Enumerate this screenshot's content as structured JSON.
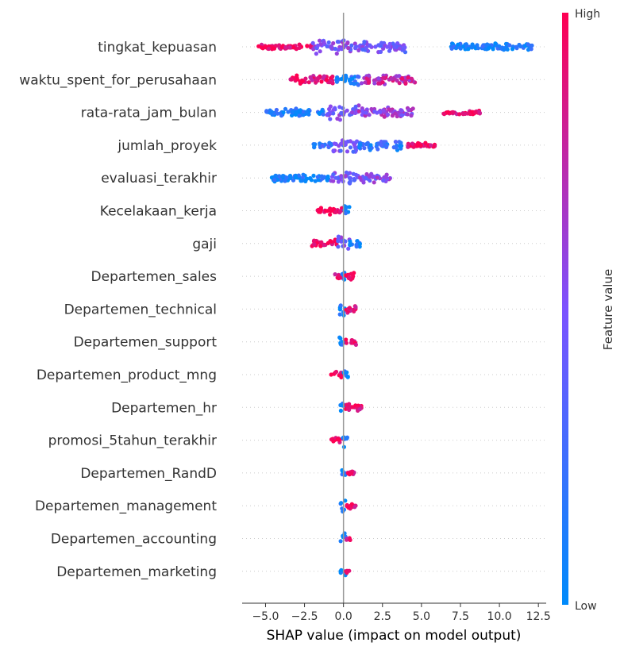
{
  "chart_data": {
    "type": "scatter",
    "subtype": "shap-beeswarm",
    "xlabel": "SHAP value (impact on model output)",
    "xlim": [
      -6.5,
      13.0
    ],
    "xticks": [
      -5.0,
      -2.5,
      0.0,
      2.5,
      5.0,
      7.5,
      10.0,
      12.5
    ],
    "xtick_labels": [
      "−5.0",
      "−2.5",
      "0.0",
      "2.5",
      "5.0",
      "7.5",
      "10.0",
      "12.5"
    ],
    "colorbar": {
      "label": "Feature value",
      "high_label": "High",
      "low_label": "Low",
      "low_color": "#008bfb",
      "mid_color": "#7c52ff",
      "high_color": "#ff0052"
    },
    "zero_line": true,
    "features": [
      {
        "name": "tingkat_kepuasan",
        "min": -5.6,
        "max": 12.2,
        "segments": [
          [
            -5.6,
            -2.0,
            0.95,
            0.15
          ],
          [
            -2.0,
            0.5,
            0.5,
            0.9
          ],
          [
            0.5,
            4.0,
            0.45,
            0.55
          ],
          [
            6.9,
            12.2,
            0.1,
            0.3
          ]
        ]
      },
      {
        "name": "waktu_spent_for_perusahaan",
        "min": -3.5,
        "max": 4.6,
        "segments": [
          [
            -3.5,
            -0.6,
            0.92,
            0.35
          ],
          [
            -0.6,
            1.0,
            0.15,
            0.75
          ],
          [
            1.0,
            4.6,
            0.75,
            0.5
          ]
        ]
      },
      {
        "name": "rata-rata_jam_bulan",
        "min": -5.0,
        "max": 8.8,
        "segments": [
          [
            -5.0,
            -1.2,
            0.1,
            0.3
          ],
          [
            -1.2,
            1.0,
            0.5,
            0.85
          ],
          [
            1.0,
            4.5,
            0.6,
            0.45
          ],
          [
            6.4,
            8.8,
            0.95,
            0.08
          ]
        ]
      },
      {
        "name": "jumlah_proyek",
        "min": -2.0,
        "max": 5.9,
        "segments": [
          [
            -2.0,
            -0.7,
            0.2,
            0.25
          ],
          [
            -0.7,
            1.0,
            0.45,
            0.85
          ],
          [
            1.0,
            3.8,
            0.2,
            0.5
          ],
          [
            3.8,
            5.9,
            0.95,
            0.12
          ]
        ]
      },
      {
        "name": "evaluasi_terakhir",
        "min": -4.7,
        "max": 3.0,
        "segments": [
          [
            -4.7,
            -0.8,
            0.08,
            0.3
          ],
          [
            -0.8,
            0.8,
            0.45,
            0.85
          ],
          [
            0.8,
            3.0,
            0.5,
            0.45
          ]
        ]
      },
      {
        "name": "Kecelakaan_kerja",
        "min": -1.7,
        "max": 0.4,
        "segments": [
          [
            -1.7,
            -0.1,
            0.95,
            0.4
          ],
          [
            0.0,
            0.4,
            0.05,
            0.9
          ]
        ]
      },
      {
        "name": "gaji",
        "min": -2.1,
        "max": 1.1,
        "segments": [
          [
            -2.1,
            -0.4,
            0.95,
            0.35
          ],
          [
            -0.4,
            0.4,
            0.45,
            0.85
          ],
          [
            0.4,
            1.1,
            0.1,
            0.3
          ]
        ]
      },
      {
        "name": "Departemen_sales",
        "min": -0.6,
        "max": 0.7,
        "segments": [
          [
            -0.6,
            -0.1,
            0.9,
            0.15
          ],
          [
            -0.1,
            0.15,
            0.05,
            0.8
          ],
          [
            0.15,
            0.7,
            0.95,
            0.25
          ]
        ]
      },
      {
        "name": "Departemen_technical",
        "min": -0.3,
        "max": 0.9,
        "segments": [
          [
            -0.3,
            0.15,
            0.05,
            0.8
          ],
          [
            0.15,
            0.9,
            0.95,
            0.35
          ]
        ]
      },
      {
        "name": "Departemen_support",
        "min": -0.3,
        "max": 0.8,
        "segments": [
          [
            -0.3,
            0.15,
            0.05,
            0.8
          ],
          [
            0.15,
            0.8,
            0.95,
            0.3
          ]
        ]
      },
      {
        "name": "Departemen_product_mng",
        "min": -0.8,
        "max": 0.3,
        "segments": [
          [
            -0.8,
            -0.05,
            0.95,
            0.3
          ],
          [
            -0.05,
            0.3,
            0.05,
            0.8
          ]
        ]
      },
      {
        "name": "Departemen_hr",
        "min": -0.2,
        "max": 1.2,
        "segments": [
          [
            -0.2,
            0.15,
            0.05,
            0.8
          ],
          [
            0.15,
            1.2,
            0.95,
            0.4
          ]
        ]
      },
      {
        "name": "promosi_5tahun_terakhir",
        "min": -0.8,
        "max": 0.3,
        "segments": [
          [
            -0.8,
            -0.05,
            0.95,
            0.3
          ],
          [
            -0.05,
            0.3,
            0.05,
            0.8
          ]
        ]
      },
      {
        "name": "Departemen_RandD",
        "min": -0.2,
        "max": 0.7,
        "segments": [
          [
            -0.2,
            0.15,
            0.05,
            0.8
          ],
          [
            0.15,
            0.7,
            0.95,
            0.2
          ]
        ]
      },
      {
        "name": "Departemen_management",
        "min": -0.2,
        "max": 0.9,
        "segments": [
          [
            -0.2,
            0.15,
            0.05,
            0.8
          ],
          [
            0.15,
            0.9,
            0.95,
            0.2
          ]
        ]
      },
      {
        "name": "Departemen_accounting",
        "min": -0.2,
        "max": 0.5,
        "segments": [
          [
            -0.2,
            0.15,
            0.05,
            0.8
          ],
          [
            0.15,
            0.5,
            0.95,
            0.15
          ]
        ]
      },
      {
        "name": "Departemen_marketing",
        "min": -0.2,
        "max": 0.4,
        "segments": [
          [
            -0.2,
            0.15,
            0.05,
            0.8
          ],
          [
            0.15,
            0.4,
            0.95,
            0.12
          ]
        ]
      }
    ]
  }
}
